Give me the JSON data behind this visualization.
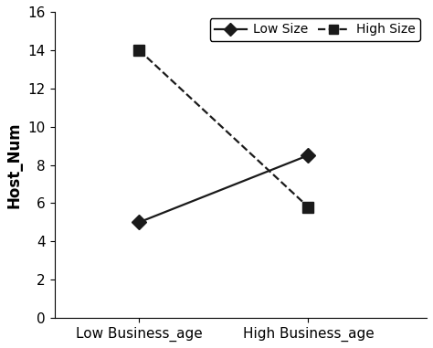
{
  "x_labels": [
    "Low Business_age",
    "High Business_age"
  ],
  "x_positions": [
    1,
    2
  ],
  "low_size_values": [
    5.0,
    8.5
  ],
  "high_size_values": [
    14.0,
    5.8
  ],
  "low_size_label": "Low Size",
  "high_size_label": "High Size",
  "line_color": "#1a1a1a",
  "low_size_linestyle": "-",
  "high_size_linestyle": "--",
  "low_size_marker": "D",
  "high_size_marker": "s",
  "ylabel": "Host_Num",
  "ylim": [
    0,
    16
  ],
  "yticks": [
    0,
    2,
    4,
    6,
    8,
    10,
    12,
    14,
    16
  ],
  "background_color": "#ffffff",
  "plot_bg_color": "#ffffff",
  "marker_size": 8,
  "linewidth": 1.6,
  "label_fontsize": 12,
  "tick_fontsize": 11,
  "legend_fontsize": 10,
  "xlim": [
    0.5,
    2.7
  ]
}
